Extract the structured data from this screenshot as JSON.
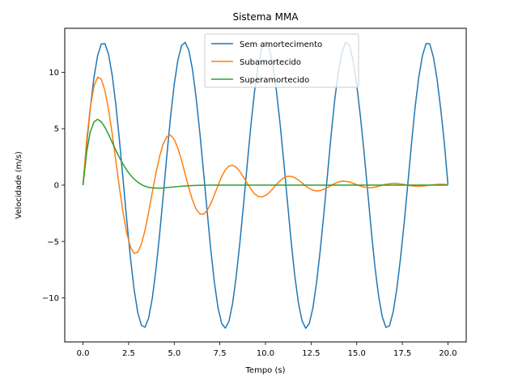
{
  "chart_data": {
    "type": "line",
    "title": "Sistema MMA",
    "xlabel": "Tempo (s)",
    "ylabel": "Velocidade (m/s)",
    "xlim": [
      -1.0,
      21.0
    ],
    "ylim": [
      -13.9,
      13.9
    ],
    "xticks": [
      0.0,
      2.5,
      5.0,
      7.5,
      10.0,
      12.5,
      15.0,
      17.5,
      20.0
    ],
    "xtick_labels": [
      "0.0",
      "2.5",
      "5.0",
      "7.5",
      "10.0",
      "12.5",
      "15.0",
      "17.5",
      "20.0"
    ],
    "yticks": [
      -10,
      -5,
      0,
      5,
      10
    ],
    "ytick_labels": [
      "−10",
      "−5",
      "0",
      "5",
      "10"
    ],
    "grid": false,
    "legend_position": "upper-center",
    "series": [
      {
        "name": "Sem amortecimento",
        "color": "#1f77b4",
        "x": [
          0.0,
          0.2,
          0.4,
          0.6,
          0.8,
          1.0,
          1.2,
          1.4,
          1.6,
          1.8,
          2.0,
          2.2,
          2.4,
          2.6,
          2.8,
          3.0,
          3.2,
          3.4,
          3.6,
          3.8,
          4.0,
          4.2,
          4.4,
          4.6,
          4.8,
          5.0,
          5.2,
          5.4,
          5.6,
          5.8,
          6.0,
          6.2,
          6.4,
          6.6,
          6.8,
          7.0,
          7.2,
          7.4,
          7.6,
          7.8,
          8.0,
          8.2,
          8.4,
          8.6,
          8.8,
          9.0,
          9.2,
          9.4,
          9.6,
          9.8,
          10.0,
          10.2,
          10.4,
          10.6,
          10.8,
          11.0,
          11.2,
          11.4,
          11.6,
          11.8,
          12.0,
          12.2,
          12.4,
          12.6,
          12.8,
          13.0,
          13.2,
          13.4,
          13.6,
          13.8,
          14.0,
          14.2,
          14.4,
          14.6,
          14.8,
          15.0,
          15.2,
          15.4,
          15.6,
          15.8,
          16.0,
          16.2,
          16.4,
          16.6,
          16.8,
          17.0,
          17.2,
          17.4,
          17.6,
          17.8,
          18.0,
          18.2,
          18.4,
          18.6,
          18.8,
          19.0,
          19.2,
          19.4,
          19.6,
          19.8,
          20.0
        ],
        "y": [
          0.0,
          3.55,
          6.81,
          9.52,
          11.46,
          12.5,
          12.54,
          11.6,
          9.74,
          7.12,
          3.94,
          0.43,
          -3.12,
          -6.43,
          -9.23,
          -11.28,
          -12.43,
          -12.6,
          -11.77,
          -10.0,
          -7.44,
          -4.34,
          -0.87,
          2.7,
          6.06,
          8.93,
          11.09,
          12.36,
          12.65,
          11.93,
          10.26,
          7.74,
          4.69,
          1.28,
          -2.27,
          -5.67,
          -8.62,
          -10.87,
          -12.26,
          -12.68,
          -12.07,
          -10.47,
          -8.04,
          -5.05,
          -1.69,
          1.83,
          5.28,
          8.28,
          10.63,
          12.14,
          12.7,
          12.18,
          10.68,
          8.34,
          5.44,
          2.11,
          -1.4,
          -4.88,
          -7.95,
          -10.38,
          -12.0,
          -12.69,
          -12.28,
          -10.87,
          -8.63,
          -5.79,
          -2.53,
          0.96,
          4.47,
          7.62,
          10.12,
          11.84,
          12.67,
          12.38,
          11.05,
          8.9,
          6.13,
          2.95,
          -0.52,
          -4.06,
          -7.26,
          -9.84,
          -11.66,
          -12.62,
          -12.45,
          -11.22,
          -9.17,
          -6.47,
          -3.36,
          0.08,
          3.64,
          6.9,
          9.54,
          11.46,
          12.55,
          12.52,
          11.38,
          9.43,
          6.8,
          3.77,
          0.04
        ]
      },
      {
        "name": "Subamortecido",
        "color": "#ff7f0e",
        "x": [
          0.0,
          0.2,
          0.4,
          0.6,
          0.8,
          1.0,
          1.2,
          1.4,
          1.6,
          1.8,
          2.0,
          2.2,
          2.4,
          2.6,
          2.8,
          3.0,
          3.2,
          3.4,
          3.6,
          3.8,
          4.0,
          4.2,
          4.4,
          4.6,
          4.8,
          5.0,
          5.2,
          5.4,
          5.6,
          5.8,
          6.0,
          6.2,
          6.4,
          6.6,
          6.8,
          7.0,
          7.2,
          7.4,
          7.6,
          7.8,
          8.0,
          8.2,
          8.4,
          8.6,
          8.8,
          9.0,
          9.2,
          9.4,
          9.6,
          9.8,
          10.0,
          10.2,
          10.4,
          10.6,
          10.8,
          11.0,
          11.2,
          11.4,
          11.6,
          11.8,
          12.0,
          12.2,
          12.4,
          12.6,
          12.8,
          13.0,
          13.2,
          13.4,
          13.6,
          13.8,
          14.0,
          14.2,
          14.4,
          14.6,
          14.8,
          15.0,
          15.2,
          15.4,
          15.6,
          15.8,
          16.0,
          16.2,
          16.4,
          16.6,
          16.8,
          17.0,
          17.2,
          17.4,
          17.6,
          17.8,
          18.0,
          18.2,
          18.4,
          18.6,
          18.8,
          19.0,
          19.2,
          19.4,
          19.6,
          19.8,
          20.0
        ],
        "y": [
          0.0,
          3.96,
          6.89,
          8.76,
          9.57,
          9.4,
          8.39,
          6.71,
          4.56,
          2.16,
          -0.27,
          -2.48,
          -4.27,
          -5.49,
          -6.06,
          -5.95,
          -5.23,
          -3.99,
          -2.39,
          -0.63,
          1.09,
          2.57,
          3.68,
          4.31,
          4.42,
          4.04,
          3.27,
          2.2,
          0.98,
          -0.25,
          -1.33,
          -2.13,
          -2.55,
          -2.58,
          -2.25,
          -1.65,
          -0.86,
          -0.03,
          0.75,
          1.35,
          1.69,
          1.76,
          1.58,
          1.2,
          0.7,
          0.16,
          -0.35,
          -0.77,
          -1.0,
          -1.05,
          -0.93,
          -0.67,
          -0.32,
          0.05,
          0.39,
          0.65,
          0.78,
          0.78,
          0.66,
          0.46,
          0.2,
          -0.07,
          -0.3,
          -0.45,
          -0.51,
          -0.48,
          -0.37,
          -0.21,
          -0.03,
          0.15,
          0.28,
          0.35,
          0.34,
          0.28,
          0.17,
          0.04,
          -0.08,
          -0.18,
          -0.23,
          -0.23,
          -0.18,
          -0.1,
          -0.01,
          0.07,
          0.13,
          0.15,
          0.14,
          0.1,
          0.05,
          -0.01,
          -0.06,
          -0.09,
          -0.1,
          -0.08,
          -0.05,
          -0.01,
          0.03,
          0.06,
          0.07,
          0.06,
          0.04
        ]
      },
      {
        "name": "Superamortecido",
        "color": "#2ca02c",
        "x": [
          0.0,
          0.2,
          0.4,
          0.6,
          0.8,
          1.0,
          1.2,
          1.4,
          1.6,
          1.8,
          2.0,
          2.2,
          2.4,
          2.6,
          2.8,
          3.0,
          3.2,
          3.4,
          3.6,
          3.8,
          4.0,
          4.2,
          4.4,
          4.6,
          4.8,
          5.0,
          5.2,
          5.4,
          5.6,
          5.8,
          6.0,
          6.2,
          6.4,
          6.6,
          6.8,
          7.0,
          7.5,
          8.0,
          8.5,
          9.0,
          10.0,
          11.0,
          12.0,
          13.0,
          14.0,
          15.0,
          16.0,
          17.0,
          18.0,
          19.0,
          20.0
        ],
        "y": [
          0.0,
          2.9,
          4.72,
          5.6,
          5.83,
          5.62,
          5.13,
          4.49,
          3.79,
          3.08,
          2.42,
          1.83,
          1.32,
          0.89,
          0.54,
          0.26,
          0.05,
          -0.1,
          -0.2,
          -0.25,
          -0.27,
          -0.27,
          -0.25,
          -0.22,
          -0.19,
          -0.16,
          -0.13,
          -0.1,
          -0.08,
          -0.06,
          -0.04,
          -0.03,
          -0.02,
          -0.01,
          -0.01,
          0.0,
          0.0,
          0.0,
          0.0,
          0.0,
          0.0,
          0.0,
          0.0,
          0.0,
          0.0,
          0.0,
          0.0,
          0.0,
          0.0,
          0.0,
          0.0
        ]
      }
    ]
  }
}
